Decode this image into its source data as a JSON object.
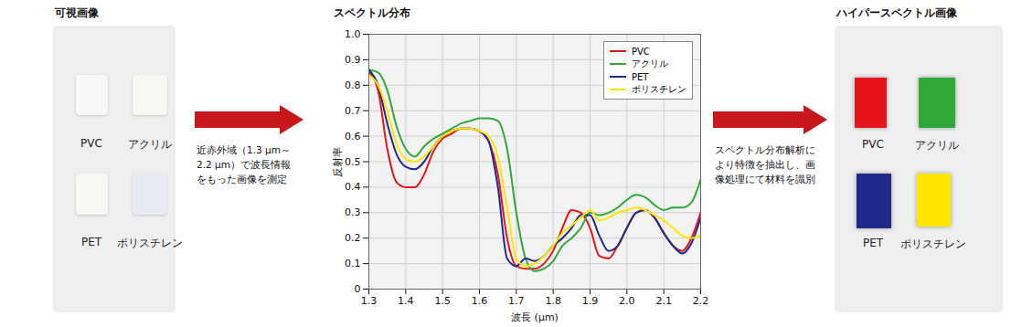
{
  "visible_panel": {
    "title": "可視画像",
    "samples": [
      "PVC",
      "アクリル",
      "PET",
      "ポリスチレン"
    ]
  },
  "arrow_1_text": "近赤外域（1.3 μm～2.2 μm）で波長情報をもった画像を測定",
  "chart_data": {
    "type": "line",
    "title": "スペクトル分布",
    "x_label": "波長 (μm)",
    "y_label": "反射率",
    "x": [
      1.3,
      1.325,
      1.35,
      1.375,
      1.4,
      1.425,
      1.45,
      1.475,
      1.5,
      1.525,
      1.55,
      1.575,
      1.6,
      1.625,
      1.65,
      1.675,
      1.7,
      1.725,
      1.75,
      1.775,
      1.8,
      1.825,
      1.85,
      1.875,
      1.9,
      1.925,
      1.95,
      1.975,
      2.0,
      2.025,
      2.05,
      2.075,
      2.1,
      2.125,
      2.15,
      2.175,
      2.2
    ],
    "series": [
      {
        "name": "PVC",
        "color": "#e8141c",
        "values": [
          0.85,
          0.78,
          0.55,
          0.42,
          0.4,
          0.4,
          0.45,
          0.54,
          0.59,
          0.61,
          0.63,
          0.63,
          0.62,
          0.58,
          0.45,
          0.2,
          0.09,
          0.08,
          0.08,
          0.1,
          0.15,
          0.24,
          0.31,
          0.3,
          0.24,
          0.13,
          0.12,
          0.17,
          0.24,
          0.3,
          0.31,
          0.28,
          0.22,
          0.17,
          0.15,
          0.2,
          0.3
        ]
      },
      {
        "name": "アクリル",
        "color": "#2fa83a",
        "values": [
          0.86,
          0.85,
          0.78,
          0.64,
          0.55,
          0.52,
          0.56,
          0.59,
          0.61,
          0.63,
          0.65,
          0.66,
          0.67,
          0.67,
          0.66,
          0.55,
          0.3,
          0.12,
          0.07,
          0.08,
          0.11,
          0.17,
          0.2,
          0.24,
          0.3,
          0.29,
          0.3,
          0.32,
          0.35,
          0.37,
          0.36,
          0.33,
          0.31,
          0.32,
          0.32,
          0.34,
          0.43
        ]
      },
      {
        "name": "PET",
        "color": "#1f2a8a",
        "values": [
          0.86,
          0.8,
          0.65,
          0.53,
          0.48,
          0.47,
          0.5,
          0.56,
          0.6,
          0.62,
          0.63,
          0.63,
          0.62,
          0.58,
          0.4,
          0.12,
          0.09,
          0.12,
          0.11,
          0.13,
          0.17,
          0.2,
          0.24,
          0.29,
          0.29,
          0.21,
          0.15,
          0.17,
          0.24,
          0.3,
          0.31,
          0.28,
          0.22,
          0.17,
          0.14,
          0.18,
          0.28
        ]
      },
      {
        "name": "ポリスチレン",
        "color": "#ffe600",
        "values": [
          0.84,
          0.8,
          0.7,
          0.57,
          0.51,
          0.5,
          0.52,
          0.56,
          0.6,
          0.62,
          0.63,
          0.63,
          0.62,
          0.6,
          0.52,
          0.32,
          0.12,
          0.09,
          0.1,
          0.13,
          0.17,
          0.22,
          0.25,
          0.28,
          0.31,
          0.27,
          0.28,
          0.3,
          0.31,
          0.32,
          0.31,
          0.29,
          0.27,
          0.24,
          0.21,
          0.2,
          0.21
        ]
      }
    ],
    "xlim": [
      1.3,
      2.2
    ],
    "xticks": [
      1.3,
      1.4,
      1.5,
      1.6,
      1.7,
      1.8,
      1.9,
      {
        "value": 2,
        "label": "2.0"
      },
      2.1,
      2.2
    ],
    "ylim": [
      0,
      1
    ],
    "yticks": [
      0,
      0.1,
      0.2,
      0.3,
      0.4,
      0.5,
      0.6,
      0.7,
      0.8,
      0.9,
      {
        "value": 1,
        "label": "1.0"
      }
    ],
    "grid": true,
    "legend": "top-right"
  },
  "arrow_2_text": "スペクトル分布解析により特徴を抽出し、画像処理にて材料を識別",
  "hyperspectral_panel": {
    "title": "ハイパースペクトル画像",
    "samples": [
      "PVC",
      "アクリル",
      "PET",
      "ポリスチレン"
    ]
  }
}
